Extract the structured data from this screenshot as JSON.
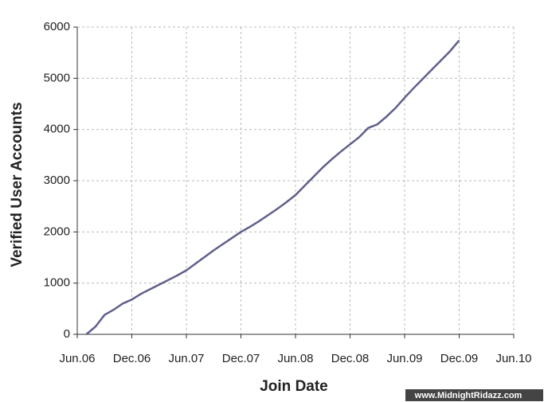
{
  "chart_data": {
    "type": "line",
    "xlabel": "Join Date",
    "ylabel": "Verified User Accounts",
    "watermark": "www.MidnightRidazz.com",
    "x": [
      "2006-07",
      "2006-08",
      "2006-09",
      "2006-10",
      "2006-11",
      "2006-12",
      "2007-01",
      "2007-02",
      "2007-03",
      "2007-04",
      "2007-05",
      "2007-06",
      "2007-07",
      "2007-08",
      "2007-09",
      "2007-10",
      "2007-11",
      "2007-12",
      "2008-01",
      "2008-02",
      "2008-03",
      "2008-04",
      "2008-05",
      "2008-06",
      "2008-07",
      "2008-08",
      "2008-09",
      "2008-10",
      "2008-11",
      "2008-12",
      "2009-01",
      "2009-02",
      "2009-03",
      "2009-04",
      "2009-05",
      "2009-06",
      "2009-07",
      "2009-08",
      "2009-09",
      "2009-10",
      "2009-11",
      "2009-12"
    ],
    "series": [
      {
        "name": "Verified User Accounts",
        "color": "#5f5f8c",
        "values": [
          0,
          150,
          380,
          480,
          600,
          680,
          790,
          880,
          970,
          1060,
          1150,
          1250,
          1380,
          1510,
          1640,
          1760,
          1880,
          2000,
          2100,
          2210,
          2330,
          2450,
          2580,
          2720,
          2900,
          3080,
          3260,
          3420,
          3570,
          3710,
          3850,
          4030,
          4100,
          4250,
          4420,
          4620,
          4810,
          4990,
          5170,
          5350,
          5530,
          5740
        ]
      }
    ],
    "xlim": [
      "2006-06",
      "2010-06"
    ],
    "xticks": [
      {
        "value": "2006-06",
        "label": "Jun.06"
      },
      {
        "value": "2006-12",
        "label": "Dec.06"
      },
      {
        "value": "2007-06",
        "label": "Jun.07"
      },
      {
        "value": "2007-12",
        "label": "Dec.07"
      },
      {
        "value": "2008-06",
        "label": "Jun.08"
      },
      {
        "value": "2008-12",
        "label": "Dec.08"
      },
      {
        "value": "2009-06",
        "label": "Jun.09"
      },
      {
        "value": "2009-12",
        "label": "Dec.09"
      },
      {
        "value": "2010-06",
        "label": "Jun.10"
      }
    ],
    "ylim": [
      0,
      6000
    ],
    "yticks": [
      0,
      1000,
      2000,
      3000,
      4000,
      5000,
      6000
    ],
    "grid": true
  }
}
